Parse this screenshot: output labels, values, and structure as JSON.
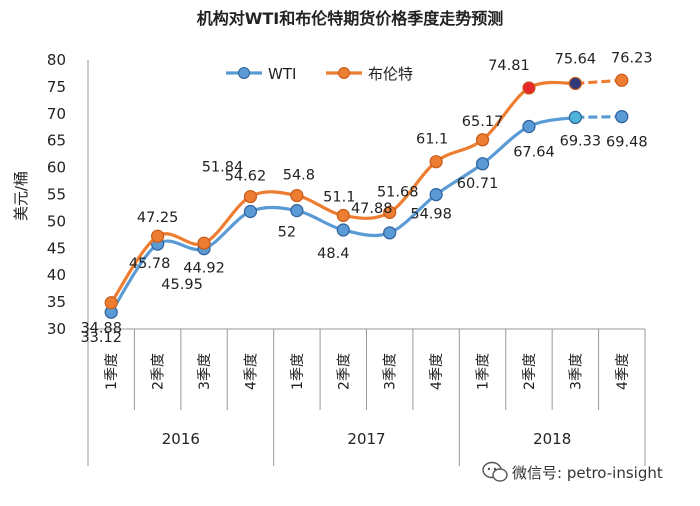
{
  "chart_data": {
    "type": "line",
    "title": "机构对WTI和布伦特期货价格季度走势预测",
    "ylabel": "美元/桶",
    "ylim": [
      30,
      80
    ],
    "yticks": [
      30,
      35,
      40,
      45,
      50,
      55,
      60,
      65,
      70,
      75,
      80
    ],
    "grid": false,
    "legend_position": "top",
    "categories": [
      "1季度",
      "2季度",
      "3季度",
      "4季度",
      "1季度",
      "2季度",
      "3季度",
      "4季度",
      "1季度",
      "2季度",
      "3季度",
      "4季度"
    ],
    "years": [
      {
        "label": "2016",
        "span": [
          0,
          3
        ]
      },
      {
        "label": "2017",
        "span": [
          4,
          7
        ]
      },
      {
        "label": "2018",
        "span": [
          8,
          11
        ]
      }
    ],
    "series": [
      {
        "name": "WTI",
        "color": "#5b9bd5",
        "values": [
          33.12,
          45.78,
          44.92,
          51.84,
          52,
          48.4,
          47.88,
          54.98,
          60.71,
          67.64,
          69.33,
          69.48
        ],
        "labels": [
          "33.12",
          "45.78",
          "44.92",
          "51.84",
          "52",
          "48.4",
          "47.88",
          "54.98",
          "60.71",
          "67.64",
          "69.33",
          "69.48"
        ]
      },
      {
        "name": "布伦特",
        "color": "#ed7d31",
        "values": [
          34.88,
          47.25,
          45.95,
          54.62,
          54.8,
          51.1,
          51.68,
          61.1,
          65.17,
          74.81,
          75.64,
          76.23
        ],
        "labels": [
          "34.88",
          "47.25",
          "45.95",
          "54.62",
          "54.8",
          "51.1",
          "51.68",
          "61.1",
          "65.17",
          "74.81",
          "75.64",
          "76.23"
        ]
      }
    ]
  },
  "watermark": "微信号: petro-insight"
}
